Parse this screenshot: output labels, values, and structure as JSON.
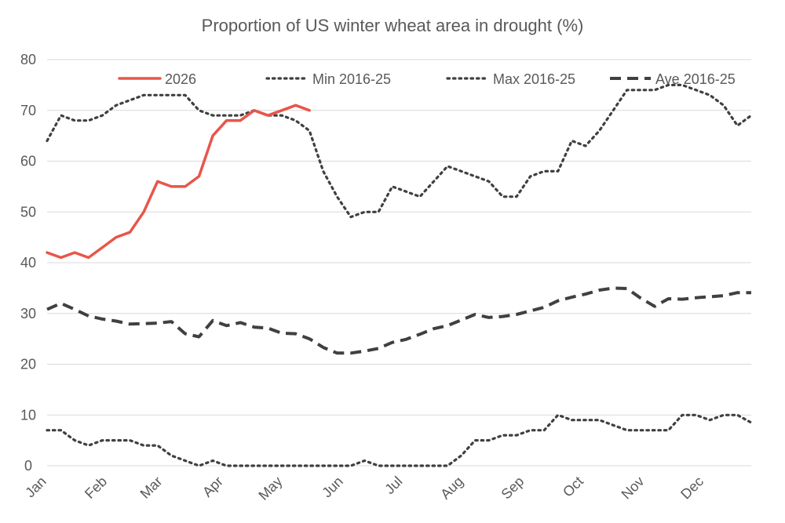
{
  "chart_data": {
    "type": "line",
    "title": "Proportion of US winter wheat area in drought (%)",
    "xlabel": "",
    "ylabel": "",
    "ylim": [
      0,
      80
    ],
    "y_ticks": [
      0,
      10,
      20,
      30,
      40,
      50,
      60,
      70,
      80
    ],
    "x_range": [
      0,
      51
    ],
    "month_labels": [
      {
        "label": "Jan",
        "week": 0
      },
      {
        "label": "Feb",
        "week": 4.4
      },
      {
        "label": "Mar",
        "week": 8.4
      },
      {
        "label": "Apr",
        "week": 12.8
      },
      {
        "label": "May",
        "week": 17.1
      },
      {
        "label": "Jun",
        "week": 21.5
      },
      {
        "label": "Jul",
        "week": 25.8
      },
      {
        "label": "Aug",
        "week": 30.2
      },
      {
        "label": "Sep",
        "week": 34.6
      },
      {
        "label": "Oct",
        "week": 38.9
      },
      {
        "label": "Nov",
        "week": 43.3
      },
      {
        "label": "Dec",
        "week": 47.6
      }
    ],
    "grid": true,
    "legend_position": "top",
    "series": [
      {
        "name": "2026",
        "color": "#e8564a",
        "style": "solid",
        "values": [
          42,
          41,
          42,
          41,
          43,
          45,
          46,
          50,
          56,
          55,
          55,
          57,
          65,
          68,
          68,
          70,
          69,
          70,
          71,
          70
        ]
      },
      {
        "name": "Min 2016-25",
        "color": "#404040",
        "style": "dotted",
        "values": [
          7,
          7,
          5,
          4,
          5,
          5,
          5,
          4,
          4,
          2,
          1,
          0,
          1,
          0,
          0,
          0,
          0,
          0,
          0,
          0,
          0,
          0,
          0,
          1,
          0,
          0,
          0,
          0,
          0,
          0,
          2,
          5,
          5,
          6,
          6,
          7,
          7,
          10,
          9,
          9,
          9,
          8,
          7,
          7,
          7,
          7,
          10,
          10,
          9,
          10,
          10,
          8.5
        ]
      },
      {
        "name": "Max 2016-25",
        "color": "#404040",
        "style": "dotted",
        "values": [
          64,
          69,
          68,
          68,
          69,
          71,
          72,
          73,
          73,
          73,
          73,
          70,
          69,
          69,
          69,
          70,
          69,
          69,
          68,
          66,
          58,
          53,
          49,
          50,
          50,
          55,
          54,
          53,
          56,
          59,
          58,
          57,
          56,
          53,
          53,
          57,
          58,
          58,
          64,
          63,
          66,
          70,
          74,
          74,
          74,
          75,
          75,
          74,
          73,
          71,
          67,
          69
        ]
      },
      {
        "name": "Ave 2016-25",
        "color": "#404040",
        "style": "dashed",
        "values": [
          30.8,
          32,
          30.8,
          29.5,
          28.9,
          28.5,
          27.9,
          28,
          28.1,
          28.4,
          26,
          25.4,
          28.6,
          27.6,
          28.2,
          27.3,
          27.1,
          26.1,
          26,
          25,
          23.3,
          22.2,
          22.2,
          22.6,
          23.1,
          24.3,
          24.9,
          25.9,
          27,
          27.6,
          28.7,
          29.8,
          29.2,
          29.4,
          29.8,
          30.5,
          31.2,
          32.5,
          33.2,
          33.8,
          34.6,
          35,
          34.9,
          33,
          31.4,
          32.9,
          32.8,
          33.1,
          33.3,
          33.5,
          34.1,
          34.1
        ]
      }
    ]
  }
}
